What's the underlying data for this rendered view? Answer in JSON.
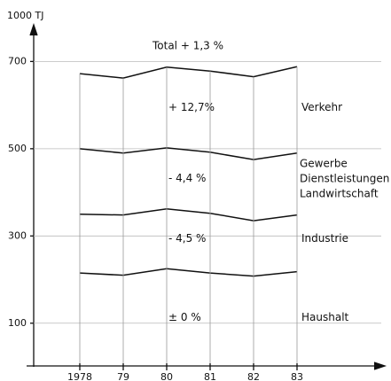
{
  "chart_data": {
    "type": "stacked_line",
    "y_label": "1000 TJ",
    "title": "Total + 1,3 %",
    "categories": [
      "1978",
      "79",
      "80",
      "81",
      "82",
      "83"
    ],
    "series": [
      {
        "name": "Haushalt",
        "annotation": "± 0 %",
        "color": "#111111",
        "values": [
          215,
          210,
          225,
          215,
          208,
          218
        ]
      },
      {
        "name": "Industrie",
        "annotation": "- 4,5 %",
        "color": "#111111",
        "values": [
          135,
          138,
          137,
          137,
          127,
          130
        ]
      },
      {
        "name": "Gewerbe\nDienstleistungen\nLandwirtschaft",
        "annotation": "- 4,4 %",
        "color": "#111111",
        "values": [
          150,
          142,
          140,
          140,
          140,
          142
        ]
      },
      {
        "name": "Verkehr",
        "annotation": "+ 12,7%",
        "color": "#111111",
        "values": [
          172,
          172,
          185,
          186,
          190,
          198
        ]
      }
    ],
    "ylim": [
      0,
      780
    ],
    "yticks": [
      100,
      300,
      500,
      700
    ],
    "grid": true
  }
}
